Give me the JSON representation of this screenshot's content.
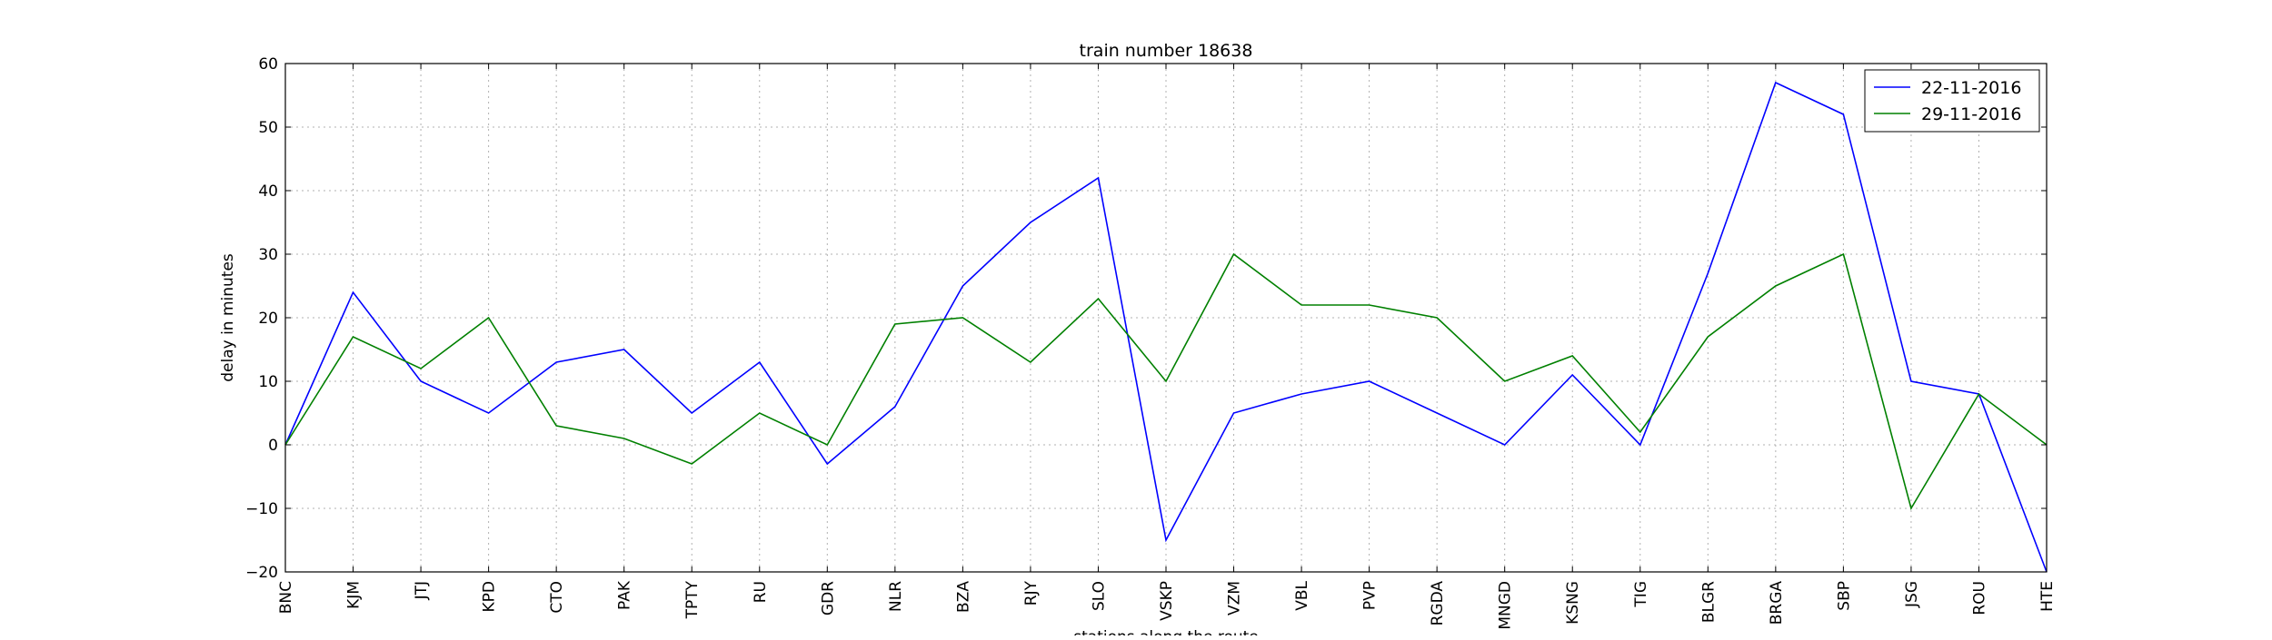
{
  "chart_data": {
    "type": "line",
    "title": "train number 18638",
    "xlabel": "stations along the route",
    "ylabel": "delay in minutes",
    "categories": [
      "BNC",
      "KJM",
      "JTJ",
      "KPD",
      "CTO",
      "PAK",
      "TPTY",
      "RU",
      "GDR",
      "NLR",
      "BZA",
      "RJY",
      "SLO",
      "VSKP",
      "VZM",
      "VBL",
      "PVP",
      "RGDA",
      "MNGD",
      "KSNG",
      "TIG",
      "BLGR",
      "BRGA",
      "SBP",
      "JSG",
      "ROU",
      "HTE"
    ],
    "ylim": [
      -20,
      60
    ],
    "yticks": [
      -20,
      -10,
      0,
      10,
      20,
      30,
      40,
      50,
      60
    ],
    "grid": true,
    "legend_position": "top-right",
    "series": [
      {
        "name": "22-11-2016",
        "color": "#0000ff",
        "values": [
          0,
          24,
          10,
          5,
          13,
          15,
          5,
          13,
          -3,
          6,
          25,
          35,
          42,
          -15,
          5,
          8,
          10,
          5,
          0,
          11,
          0,
          27,
          57,
          52,
          10,
          8,
          -20
        ]
      },
      {
        "name": "29-11-2016",
        "color": "#008000",
        "values": [
          0,
          17,
          12,
          20,
          3,
          1,
          -3,
          5,
          0,
          19,
          20,
          13,
          23,
          10,
          30,
          22,
          22,
          20,
          10,
          14,
          2,
          17,
          25,
          30,
          -10,
          8,
          0
        ]
      }
    ]
  }
}
